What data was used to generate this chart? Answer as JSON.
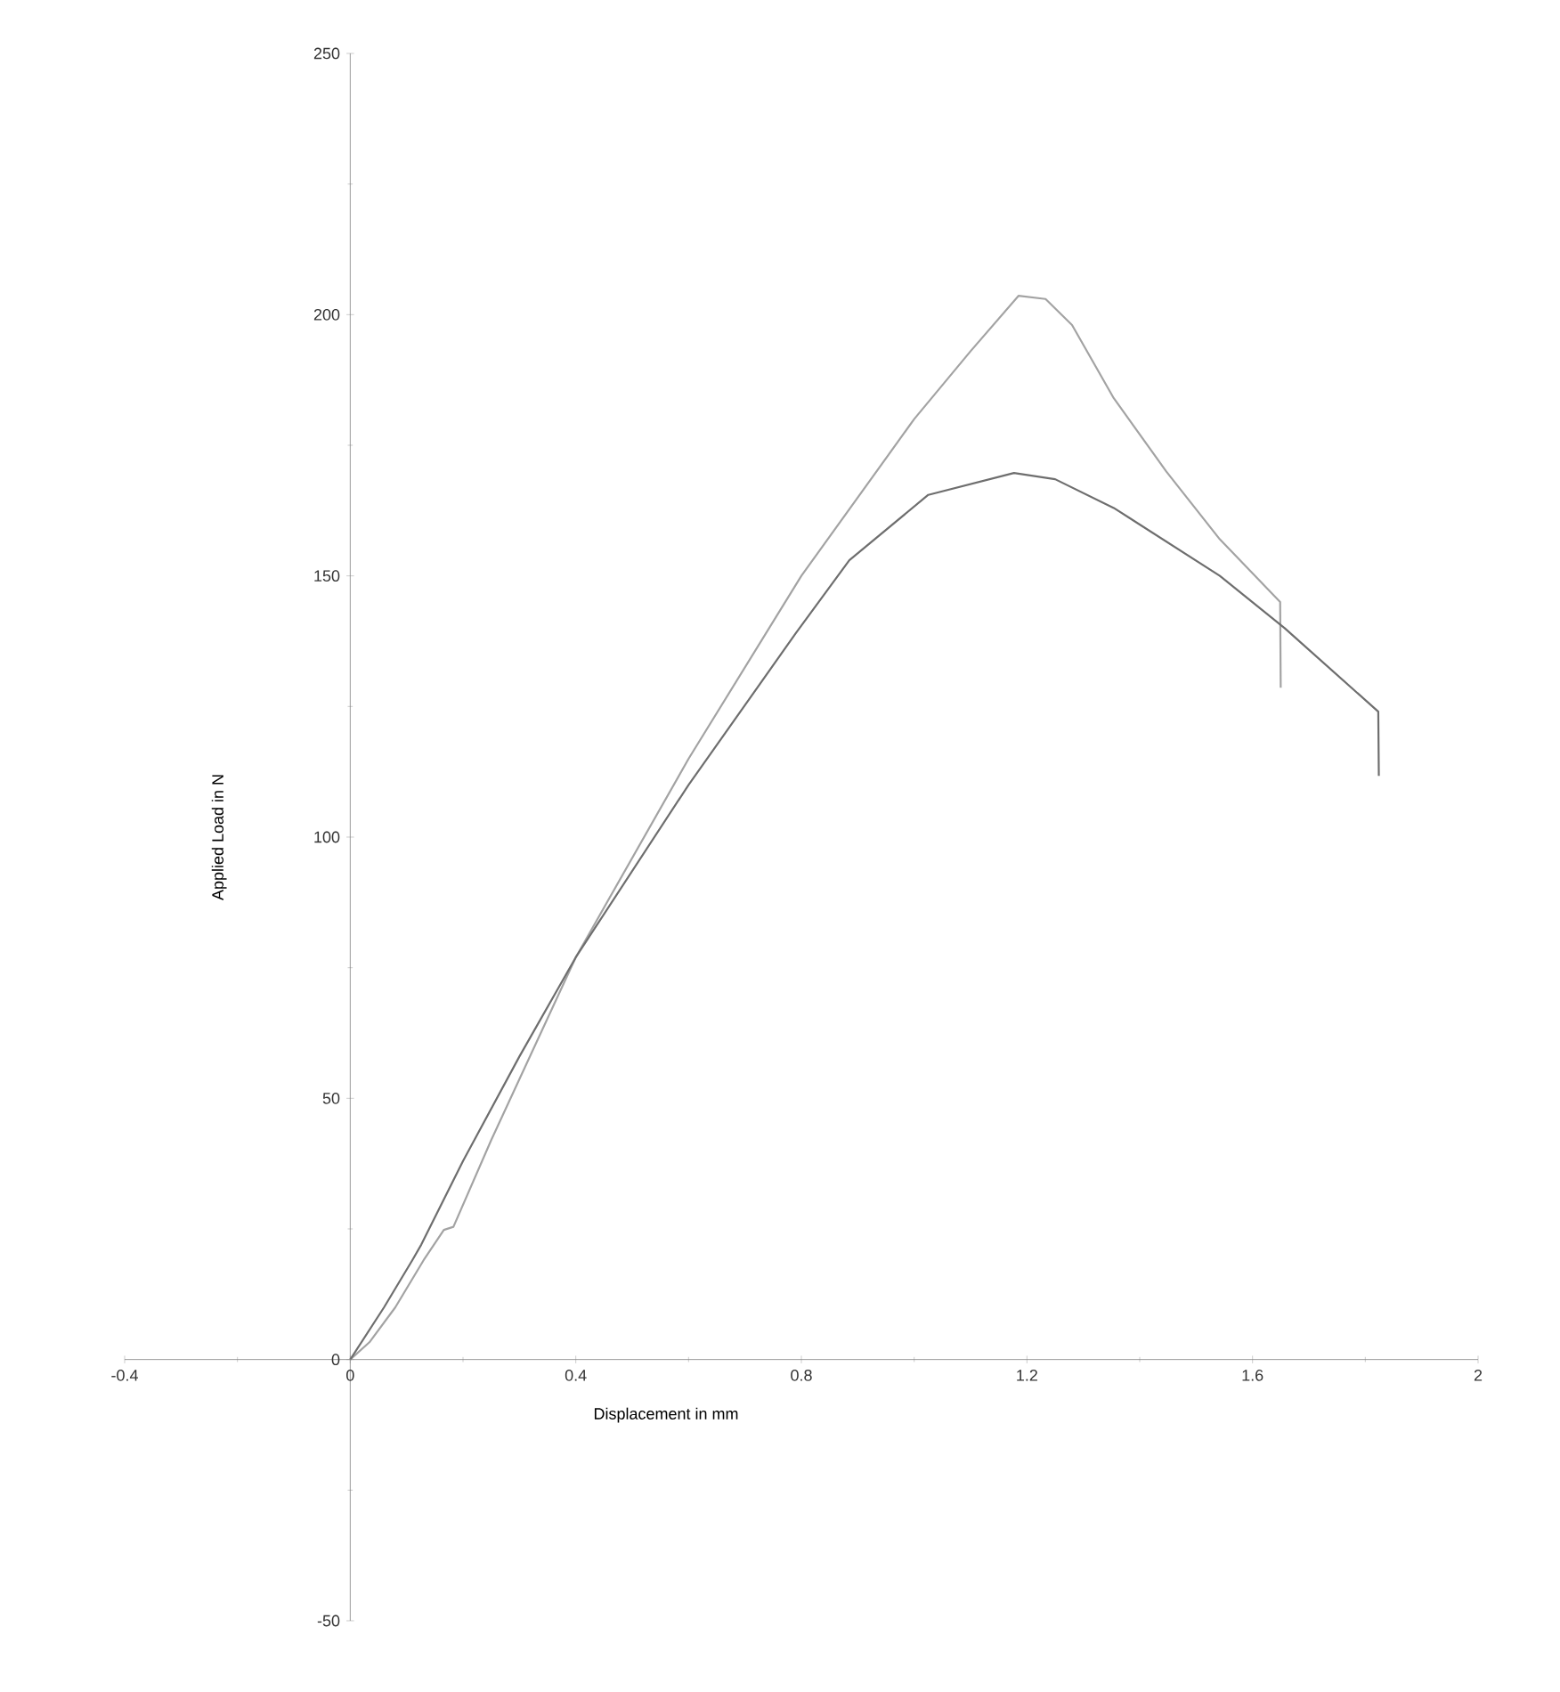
{
  "chart_data": {
    "type": "line",
    "xlabel": "Displacement in mm",
    "ylabel": "Applied Load in N",
    "xlim": [
      -0.4,
      2
    ],
    "ylim": [
      -50,
      250
    ],
    "xticks": [
      -0.4,
      0,
      0.4,
      0.8,
      1.2,
      1.6,
      2
    ],
    "yticks": [
      -50,
      0,
      50,
      100,
      150,
      200,
      250
    ],
    "grid": false,
    "marker": "none",
    "line_style": "solid",
    "series": [
      {
        "color": "#a3a3a3",
        "x": [
          0,
          0.034,
          0.08,
          0.13,
          0.166,
          0.183,
          0.25,
          0.4,
          0.6,
          0.8,
          1.0,
          1.1,
          1.185,
          1.233,
          1.28,
          1.354,
          1.447,
          1.542,
          1.649,
          1.65
        ],
        "values": [
          0,
          3.3,
          10,
          19,
          24.8,
          25.4,
          42,
          77,
          115,
          150,
          180,
          193,
          203.6,
          203,
          198,
          184,
          170,
          157,
          145,
          128.6
        ]
      },
      {
        "color": "#6e6e6e",
        "x": [
          0,
          0.06,
          0.11,
          0.126,
          0.2,
          0.3,
          0.4,
          0.6,
          0.79,
          0.885,
          1.025,
          1.177,
          1.25,
          1.354,
          1.542,
          1.657,
          1.823,
          1.824
        ],
        "values": [
          0,
          10,
          19,
          22,
          38,
          58,
          77,
          110,
          139,
          153,
          165.5,
          169.7,
          168.5,
          163,
          150,
          140,
          124,
          111.7
        ]
      }
    ]
  }
}
